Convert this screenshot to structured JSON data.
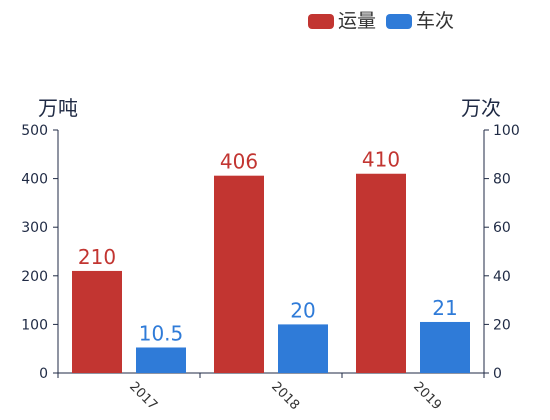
{
  "chart_data": {
    "type": "bar",
    "categories": [
      "2017",
      "2018",
      "2019"
    ],
    "series": [
      {
        "name": "运量",
        "axis": "left",
        "color": "#c23531",
        "values": [
          210,
          406,
          410
        ],
        "labels": [
          "210",
          "406",
          "410"
        ]
      },
      {
        "name": "车次",
        "axis": "right",
        "color": "#2f7bd8",
        "values": [
          10.5,
          20,
          21
        ],
        "labels": [
          "10.5",
          "20",
          "21"
        ]
      }
    ],
    "y_left": {
      "label": "万吨",
      "min": 0,
      "max": 500,
      "ticks": [
        "0",
        "100",
        "200",
        "300",
        "400",
        "500"
      ]
    },
    "y_right": {
      "label": "万次",
      "min": 0,
      "max": 100,
      "ticks": [
        "0",
        "20",
        "40",
        "60",
        "80",
        "100"
      ]
    },
    "legend": "top-right",
    "grid": false,
    "axis_color": "#1f2a44",
    "x_tick_rotation_deg": 45
  }
}
